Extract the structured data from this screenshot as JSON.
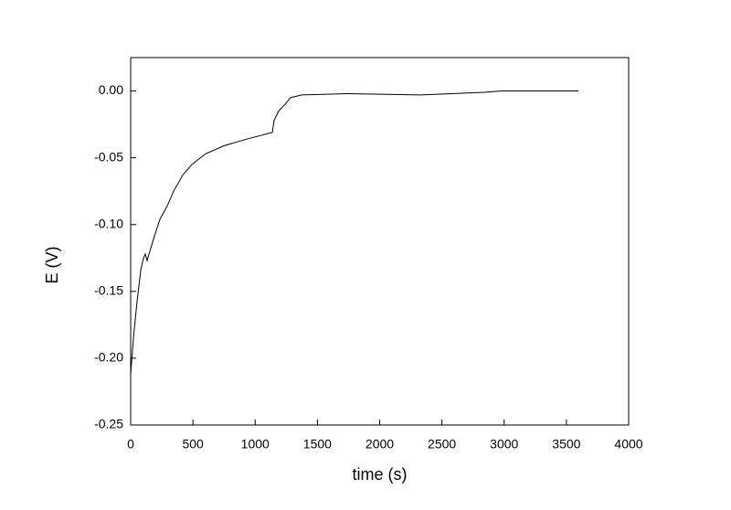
{
  "chart_data": {
    "type": "line",
    "x_label": "time (s)",
    "y_label": "E (V)",
    "xlim": [
      0,
      4000
    ],
    "xticks": [
      0,
      500,
      1000,
      1500,
      2000,
      2500,
      3000,
      3500,
      4000
    ],
    "ylim": [
      -0.25,
      0.025
    ],
    "yticks": [
      {
        "value": 0,
        "label": "0.00"
      },
      -0.05,
      {
        "value": -0.1,
        "label": "-0.10"
      },
      -0.15,
      {
        "value": -0.2,
        "label": "-0.20"
      },
      -0.25
    ],
    "series": [
      {
        "color": "#000000",
        "x": [
          0,
          22,
          51,
          81,
          103,
          117,
          132,
          154,
          183,
          235,
          294,
          345,
          418,
          492,
          602,
          749,
          932,
          1138,
          1152,
          1189,
          1240,
          1284,
          1372,
          1739,
          2327,
          2840,
          2987,
          3596
        ],
        "values": [
          -0.212,
          -0.185,
          -0.158,
          -0.134,
          -0.125,
          -0.122,
          -0.127,
          -0.12,
          -0.111,
          -0.096,
          -0.086,
          -0.075,
          -0.063,
          -0.055,
          -0.047,
          -0.041,
          -0.036,
          -0.031,
          -0.022,
          -0.015,
          -0.01,
          -0.005,
          -0.003,
          -0.002,
          -0.003,
          -0.001,
          0.0,
          0.0
        ]
      }
    ]
  }
}
